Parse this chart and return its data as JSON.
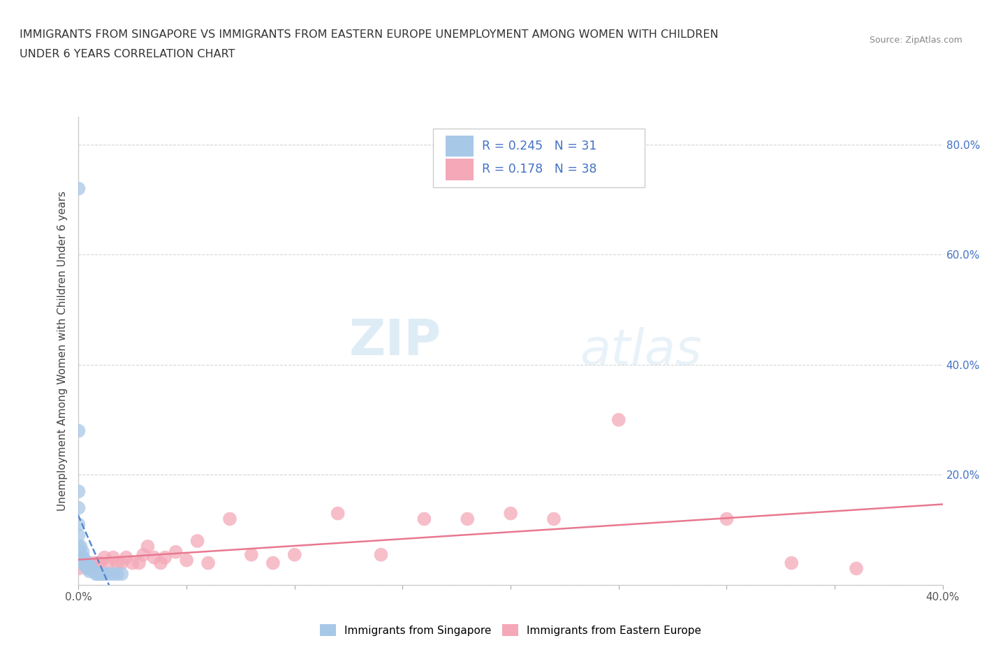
{
  "title_line1": "IMMIGRANTS FROM SINGAPORE VS IMMIGRANTS FROM EASTERN EUROPE UNEMPLOYMENT AMONG WOMEN WITH CHILDREN",
  "title_line2": "UNDER 6 YEARS CORRELATION CHART",
  "source": "Source: ZipAtlas.com",
  "ylabel": "Unemployment Among Women with Children Under 6 years",
  "xlim": [
    0,
    0.4
  ],
  "ylim": [
    0,
    0.85
  ],
  "x_ticks": [
    0.0,
    0.05,
    0.1,
    0.15,
    0.2,
    0.25,
    0.3,
    0.35,
    0.4
  ],
  "x_tick_labels": [
    "0.0%",
    "",
    "",
    "",
    "",
    "",
    "",
    "",
    "40.0%"
  ],
  "y_ticks": [
    0.0,
    0.2,
    0.4,
    0.6,
    0.8
  ],
  "y_tick_labels_right": [
    "",
    "20.0%",
    "40.0%",
    "60.0%",
    "80.0%"
  ],
  "singapore_color": "#a8c8e8",
  "eastern_europe_color": "#f4a8b8",
  "singapore_line_color": "#5588cc",
  "eastern_europe_line_color": "#e87890",
  "R_singapore": 0.245,
  "N_singapore": 31,
  "R_eastern_europe": 0.178,
  "N_eastern_europe": 38,
  "legend_label_singapore": "Immigrants from Singapore",
  "legend_label_eastern_europe": "Immigrants from Eastern Europe",
  "watermark_zip": "ZIP",
  "watermark_atlas": "atlas",
  "singapore_x": [
    0.0,
    0.0,
    0.0,
    0.0,
    0.0,
    0.0,
    0.0,
    0.001,
    0.001,
    0.001,
    0.002,
    0.002,
    0.002,
    0.003,
    0.003,
    0.004,
    0.004,
    0.005,
    0.005,
    0.005,
    0.006,
    0.007,
    0.008,
    0.009,
    0.01,
    0.011,
    0.012,
    0.014,
    0.016,
    0.018,
    0.02
  ],
  "singapore_y": [
    0.72,
    0.28,
    0.17,
    0.14,
    0.11,
    0.09,
    0.07,
    0.07,
    0.055,
    0.045,
    0.06,
    0.05,
    0.04,
    0.045,
    0.035,
    0.04,
    0.03,
    0.035,
    0.03,
    0.025,
    0.03,
    0.025,
    0.02,
    0.02,
    0.02,
    0.02,
    0.02,
    0.02,
    0.02,
    0.02,
    0.02
  ],
  "eastern_europe_x": [
    0.0,
    0.0,
    0.003,
    0.005,
    0.007,
    0.009,
    0.01,
    0.012,
    0.014,
    0.016,
    0.018,
    0.02,
    0.022,
    0.025,
    0.028,
    0.03,
    0.032,
    0.035,
    0.038,
    0.04,
    0.045,
    0.05,
    0.055,
    0.06,
    0.07,
    0.08,
    0.09,
    0.1,
    0.12,
    0.14,
    0.16,
    0.18,
    0.2,
    0.22,
    0.25,
    0.3,
    0.33,
    0.36
  ],
  "eastern_europe_y": [
    0.05,
    0.03,
    0.04,
    0.03,
    0.04,
    0.04,
    0.04,
    0.05,
    0.04,
    0.05,
    0.04,
    0.04,
    0.05,
    0.04,
    0.04,
    0.055,
    0.07,
    0.05,
    0.04,
    0.05,
    0.06,
    0.045,
    0.08,
    0.04,
    0.12,
    0.055,
    0.04,
    0.055,
    0.13,
    0.055,
    0.12,
    0.12,
    0.13,
    0.12,
    0.3,
    0.12,
    0.04,
    0.03
  ]
}
